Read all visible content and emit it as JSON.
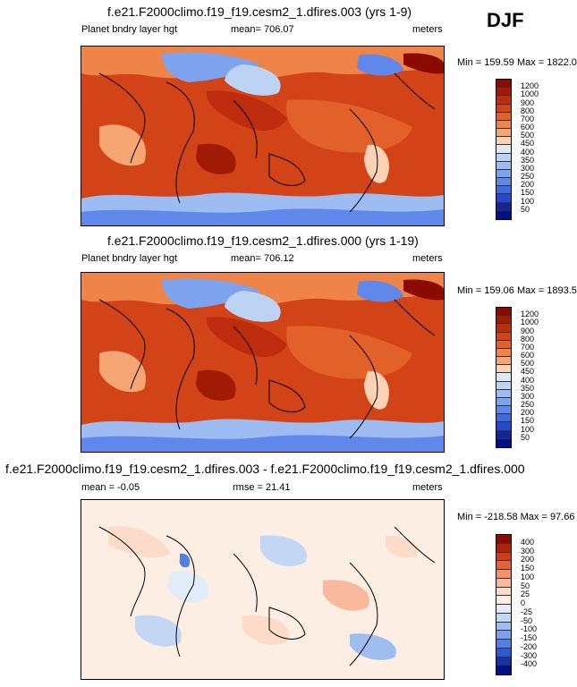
{
  "season": "DJF",
  "panels": [
    {
      "title": "f.e21.F2000climo.f19_f19.cesm2_1.dfires.003 (yrs 1-9)",
      "left_label": "Planet bndry layer hgt",
      "center_label": "mean= 706.07",
      "units": "meters",
      "minmax": "Min = 159.59 Max = 1822.03",
      "type": "abs",
      "levels": [
        "1200",
        "1000",
        "900",
        "800",
        "700",
        "600",
        "500",
        "450",
        "400",
        "350",
        "300",
        "250",
        "200",
        "150",
        "100",
        "50"
      ],
      "colors": [
        "#8b0b00",
        "#a11a04",
        "#bd2c0c",
        "#d24418",
        "#e2602a",
        "#ee8448",
        "#f5a673",
        "#fbd2b4",
        "#dde8f5",
        "#bcd3f3",
        "#9dbcf1",
        "#7ea3ee",
        "#5f88ea",
        "#3f6ae2",
        "#2648d0",
        "#12269a",
        "#001087"
      ]
    },
    {
      "title": "f.e21.F2000climo.f19_f19.cesm2_1.dfires.000 (yrs 1-19)",
      "left_label": "Planet bndry layer hgt",
      "center_label": "mean= 706.12",
      "units": "meters",
      "minmax": "Min = 159.06 Max = 1893.50",
      "type": "abs",
      "levels": [
        "1200",
        "1000",
        "900",
        "800",
        "700",
        "600",
        "500",
        "450",
        "400",
        "350",
        "300",
        "250",
        "200",
        "150",
        "100",
        "50"
      ],
      "colors": [
        "#8b0b00",
        "#a11a04",
        "#bd2c0c",
        "#d24418",
        "#e2602a",
        "#ee8448",
        "#f5a673",
        "#fbd2b4",
        "#dde8f5",
        "#bcd3f3",
        "#9dbcf1",
        "#7ea3ee",
        "#5f88ea",
        "#3f6ae2",
        "#2648d0",
        "#12269a",
        "#001087"
      ]
    },
    {
      "title": "f.e21.F2000climo.f19_f19.cesm2_1.dfires.003 - f.e21.F2000climo.f19_f19.cesm2_1.dfires.000",
      "left_label": "mean =  -0.05",
      "center_label": "rmse =  21.41",
      "units": "meters",
      "minmax": "Min = -218.58 Max =  97.66",
      "type": "diff",
      "levels": [
        "400",
        "300",
        "200",
        "150",
        "100",
        "50",
        "25",
        "0",
        "-25",
        "-50",
        "-100",
        "-150",
        "-200",
        "-300",
        "-400"
      ],
      "colors": [
        "#8b0b00",
        "#b3200a",
        "#d23a18",
        "#e6613a",
        "#f2916c",
        "#f8b99c",
        "#fcdcc8",
        "#fdeee4",
        "#e2ecf8",
        "#c3d6f3",
        "#9fbdef",
        "#7aa0eb",
        "#537fe3",
        "#2f58d5",
        "#1730a8",
        "#001087"
      ]
    }
  ]
}
